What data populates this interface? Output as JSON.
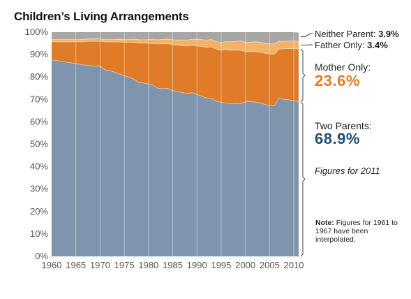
{
  "chart_data": {
    "type": "area",
    "title": "Children’s Living Arrangements",
    "xlabel": "",
    "ylabel": "",
    "xlim": [
      1960,
      2011
    ],
    "ylim": [
      0,
      100
    ],
    "y_unit": "%",
    "stacked": true,
    "x_ticks": [
      1960,
      1965,
      1970,
      1975,
      1980,
      1985,
      1990,
      1995,
      2000,
      2005,
      2010
    ],
    "y_ticks": [
      0,
      10,
      20,
      30,
      40,
      50,
      60,
      70,
      80,
      90,
      100
    ],
    "y_tick_labels": [
      "0%",
      "10%",
      "20%",
      "30%",
      "40%",
      "50%",
      "60%",
      "70%",
      "80%",
      "90%",
      "100%"
    ],
    "grid": "vertical",
    "x": [
      1960,
      1961,
      1962,
      1963,
      1964,
      1965,
      1966,
      1967,
      1968,
      1969,
      1970,
      1971,
      1972,
      1973,
      1974,
      1975,
      1976,
      1977,
      1978,
      1979,
      1980,
      1981,
      1982,
      1983,
      1984,
      1985,
      1986,
      1987,
      1988,
      1989,
      1990,
      1991,
      1992,
      1993,
      1994,
      1995,
      1996,
      1997,
      1998,
      1999,
      2000,
      2001,
      2002,
      2003,
      2004,
      2005,
      2006,
      2007,
      2008,
      2009,
      2010,
      2011
    ],
    "series": [
      {
        "name": "Two Parents",
        "color": "#7f94ad",
        "values": [
          87.7,
          87.3,
          87.0,
          86.6,
          86.3,
          86.0,
          85.6,
          85.3,
          85.0,
          84.9,
          84.8,
          83.2,
          82.9,
          82.1,
          81.3,
          80.5,
          79.9,
          79.0,
          77.6,
          77.3,
          76.9,
          76.3,
          74.9,
          74.8,
          74.9,
          73.9,
          73.6,
          73.0,
          72.7,
          73.0,
          72.2,
          71.4,
          70.6,
          70.5,
          69.2,
          68.7,
          68.3,
          68.1,
          68.2,
          68.0,
          68.9,
          69.1,
          68.8,
          68.4,
          67.8,
          67.3,
          67.2,
          70.7,
          70.0,
          69.8,
          69.4,
          68.9
        ]
      },
      {
        "name": "Mother Only",
        "color": "#e07b27",
        "values": [
          8.0,
          8.4,
          8.7,
          9.1,
          9.4,
          9.7,
          10.1,
          10.5,
          10.9,
          11.0,
          11.1,
          12.5,
          12.8,
          13.5,
          14.3,
          15.0,
          15.6,
          16.5,
          17.5,
          17.8,
          18.1,
          18.6,
          19.8,
          20.0,
          19.9,
          20.5,
          20.6,
          21.0,
          21.1,
          21.0,
          21.6,
          22.2,
          22.6,
          22.9,
          23.2,
          23.2,
          23.8,
          23.8,
          23.7,
          23.9,
          22.4,
          22.2,
          22.5,
          22.7,
          22.8,
          23.0,
          23.0,
          21.8,
          22.6,
          22.9,
          23.2,
          23.6
        ]
      },
      {
        "name": "Father Only",
        "color": "#f3b266",
        "values": [
          1.0,
          1.0,
          1.0,
          1.0,
          1.0,
          1.0,
          1.0,
          1.1,
          1.1,
          1.1,
          1.1,
          1.0,
          1.0,
          1.1,
          1.2,
          1.2,
          1.2,
          1.4,
          1.5,
          1.5,
          1.7,
          1.8,
          1.9,
          2.0,
          2.1,
          2.2,
          2.3,
          2.5,
          2.7,
          2.8,
          3.1,
          3.1,
          3.2,
          3.3,
          3.4,
          3.5,
          3.7,
          3.8,
          4.0,
          4.2,
          4.2,
          4.2,
          4.4,
          4.4,
          4.4,
          4.5,
          4.6,
          3.5,
          3.3,
          3.4,
          3.5,
          3.4
        ]
      },
      {
        "name": "Neither Parent",
        "color": "#a8a6a4",
        "values": [
          3.3,
          3.3,
          3.3,
          3.3,
          3.3,
          3.3,
          3.3,
          3.1,
          3.0,
          3.0,
          3.0,
          3.3,
          3.3,
          3.3,
          3.2,
          3.3,
          3.3,
          3.1,
          3.4,
          3.4,
          3.3,
          3.3,
          3.4,
          3.2,
          3.1,
          3.4,
          3.5,
          3.5,
          3.5,
          3.2,
          3.1,
          3.3,
          3.6,
          3.3,
          4.2,
          4.6,
          4.2,
          4.3,
          4.1,
          3.9,
          4.5,
          4.5,
          4.3,
          4.5,
          5.0,
          5.2,
          5.2,
          4.0,
          4.1,
          3.9,
          3.9,
          3.9
        ]
      }
    ],
    "annotations": {
      "neither_parent": {
        "label": "Neither Parent:",
        "value": "3.9%"
      },
      "father_only": {
        "label": "Father Only:",
        "value": "3.4%"
      },
      "mother_only": {
        "label": "Mother Only:",
        "value": "23.6%",
        "color": "#e07b27"
      },
      "two_parents": {
        "label": "Two Parents:",
        "value": "68.9%",
        "color": "#1f4f73"
      },
      "figures_note": "Figures for 2011",
      "note_label": "Note:",
      "note_text": "Figures for 1961 to 1967 have been interpolated."
    }
  }
}
